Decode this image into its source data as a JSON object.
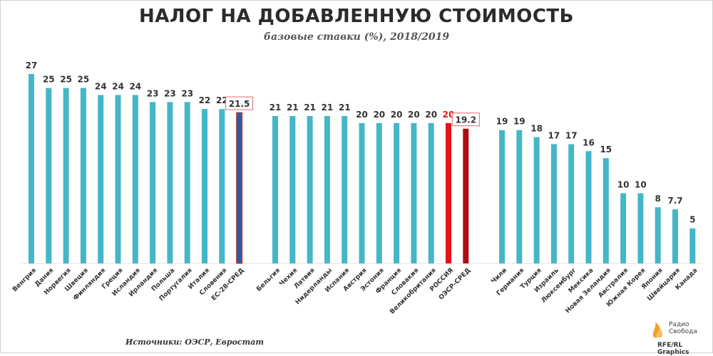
{
  "colors": {
    "bar": "#45b6c7",
    "eu_avg": "#2f5aa0",
    "russia": "#e4141b",
    "oecd_avg": "#b00d12",
    "label_box": "#e06a6a"
  },
  "chart_data": {
    "type": "bar",
    "title": "НАЛОГ НА ДОБАВЛЕННУЮ СТОИМОСТЬ",
    "subtitle": "базовые ставки (%), 2018/2019",
    "ylim": [
      0,
      28
    ],
    "grid": false,
    "groups": [
      {
        "categories": [
          "Венгрия",
          "Дания",
          "Норвегия",
          "Швеция",
          "Финляндия",
          "Греция",
          "Исландия",
          "Ирландия",
          "Польша",
          "Португалия",
          "Италия",
          "Словения",
          "ЕС-28-СРЕД"
        ],
        "values": [
          27,
          25,
          25,
          25,
          24,
          24,
          24,
          23,
          23,
          23,
          22,
          22,
          21.5
        ],
        "labels": [
          "27",
          "25",
          "25",
          "25",
          "24",
          "24",
          "24",
          "23",
          "23",
          "23",
          "22",
          "22",
          "21.5"
        ],
        "highlight": {
          "12": "eu_avg"
        }
      },
      {
        "categories": [
          "Бельгия",
          "Чехия",
          "Латвия",
          "Нидерланды",
          "Испания",
          "Австрия",
          "Эстония",
          "Франция",
          "Словакия",
          "Великобритания",
          "РОССИЯ",
          "ОЭСР-СРЕД"
        ],
        "values": [
          21,
          21,
          21,
          21,
          21,
          20,
          20,
          20,
          20,
          20,
          20,
          19.2
        ],
        "labels": [
          "21",
          "21",
          "21",
          "21",
          "21",
          "20",
          "20",
          "20",
          "20",
          "20",
          "20",
          "19.2"
        ],
        "highlight": {
          "10": "russia",
          "11": "oecd_avg"
        }
      },
      {
        "categories": [
          "Чили",
          "Германия",
          "Турция",
          "Израиль",
          "Люксембург",
          "Мексика",
          "Новая Зеландия",
          "Австралия",
          "Южная Корея",
          "Япония",
          "Швейцария",
          "Канада"
        ],
        "values": [
          19,
          19,
          18,
          17,
          17,
          16,
          15,
          10,
          10,
          8,
          7.7,
          5
        ],
        "labels": [
          "19",
          "19",
          "18",
          "17",
          "17",
          "16",
          "15",
          "10",
          "10",
          "8",
          "7.7",
          "5"
        ],
        "highlight": {}
      }
    ],
    "boxed_labels": [
      "21.5",
      "19.2"
    ]
  },
  "footer": {
    "source": "Источники: ОЭСР, Евростат",
    "logo_line1": "Радио",
    "logo_line2": "Свобода",
    "credit": "RFE/RL Graphics"
  },
  "logo": {
    "icon": "radio-svoboda-flame-icon",
    "color": "#f0a030"
  }
}
